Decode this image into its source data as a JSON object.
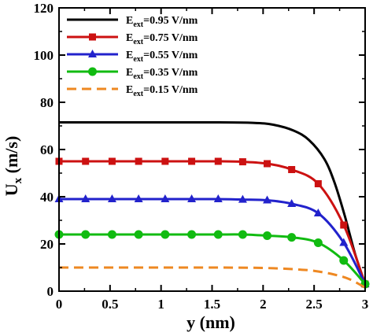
{
  "chart_data": {
    "type": "line",
    "title": "",
    "xlabel": "y (nm)",
    "ylabel": "U_x (m/s)",
    "ylabel_main": "U",
    "ylabel_sub": "x",
    "ylabel_unit": " (m/s)",
    "xlim": [
      0,
      3
    ],
    "ylim": [
      0,
      120
    ],
    "xticks": [
      0,
      0.5,
      1,
      1.5,
      2,
      2.5,
      3
    ],
    "xtick_labels": [
      "0",
      "0.5",
      "1",
      "1.5",
      "2",
      "2.5",
      "3"
    ],
    "yticks": [
      0,
      20,
      40,
      60,
      80,
      100,
      120
    ],
    "ytick_labels": [
      "0",
      "20",
      "40",
      "60",
      "80",
      "100",
      "120"
    ],
    "grid": false,
    "legend_placement": "top-left",
    "series": [
      {
        "name": "E_ext=0.95 V/nm",
        "legend_main": "E",
        "legend_sub": "ext",
        "legend_rest": "=0.95 V/nm",
        "color": "#000000",
        "marker": "none",
        "dash": "solid",
        "x": [
          0,
          0.5,
          1,
          1.5,
          1.9,
          2.1,
          2.3,
          2.45,
          2.6,
          2.7,
          2.8,
          2.9,
          3.0
        ],
        "y": [
          71.5,
          71.5,
          71.5,
          71.5,
          71.3,
          70.5,
          68.0,
          64.0,
          56.0,
          46.0,
          32.0,
          16.0,
          3.0
        ]
      },
      {
        "name": "E_ext=0.75 V/nm",
        "legend_main": "E",
        "legend_sub": "ext",
        "legend_rest": "=0.75 V/nm",
        "color": "#cc1111",
        "marker": "square",
        "dash": "solid",
        "x": [
          0,
          0.26,
          0.52,
          0.78,
          1.04,
          1.3,
          1.56,
          1.8,
          2.04,
          2.28,
          2.54,
          2.79,
          3.0
        ],
        "y": [
          55.0,
          55.0,
          55.0,
          55.0,
          55.0,
          55.0,
          55.0,
          54.8,
          54.0,
          51.5,
          45.5,
          28.0,
          3.0
        ]
      },
      {
        "name": "E_ext=0.55 V/nm",
        "legend_main": "E",
        "legend_sub": "ext",
        "legend_rest": "=0.55 V/nm",
        "color": "#2222cc",
        "marker": "triangle",
        "dash": "solid",
        "x": [
          0,
          0.26,
          0.52,
          0.78,
          1.04,
          1.3,
          1.56,
          1.8,
          2.04,
          2.28,
          2.54,
          2.79,
          3.0
        ],
        "y": [
          39.0,
          39.0,
          39.0,
          39.0,
          39.0,
          39.0,
          39.0,
          38.8,
          38.5,
          37.0,
          33.0,
          20.5,
          3.0
        ]
      },
      {
        "name": "E_ext=0.35 V/nm",
        "legend_main": "E",
        "legend_sub": "ext",
        "legend_rest": "=0.35 V/nm",
        "color": "#11bb11",
        "marker": "circle",
        "dash": "solid",
        "x": [
          0,
          0.26,
          0.52,
          0.78,
          1.04,
          1.3,
          1.56,
          1.8,
          2.04,
          2.28,
          2.54,
          2.79,
          3.0
        ],
        "y": [
          24.0,
          24.0,
          24.0,
          24.0,
          24.0,
          24.0,
          24.0,
          24.0,
          23.5,
          22.8,
          20.5,
          13.0,
          3.0
        ]
      },
      {
        "name": "E_ext=0.15 V/nm",
        "legend_main": "E",
        "legend_sub": "ext",
        "legend_rest": "=0.15 V/nm",
        "color": "#ee8822",
        "marker": "none",
        "dash": "dashed",
        "x": [
          0,
          0.5,
          1,
          1.5,
          1.9,
          2.1,
          2.3,
          2.5,
          2.7,
          2.85,
          3.0
        ],
        "y": [
          10.0,
          10.0,
          10.0,
          10.0,
          9.9,
          9.7,
          9.3,
          8.6,
          7.0,
          5.0,
          1.5
        ]
      }
    ]
  }
}
